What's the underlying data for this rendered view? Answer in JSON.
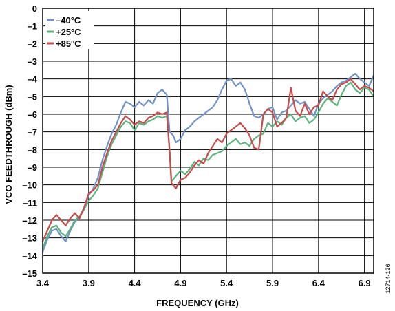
{
  "chart_data": {
    "type": "line",
    "xlabel": "FREQUENCY (GHz)",
    "ylabel": "VCO FEEDTHROUGH (dBm)",
    "xlim": [
      3.4,
      7.0
    ],
    "ylim": [
      -15,
      0
    ],
    "xticks": [
      "3.4",
      "3.9",
      "4.4",
      "4.9",
      "5.4",
      "5.9",
      "6.4",
      "6.9"
    ],
    "xtick_values": [
      3.4,
      3.9,
      4.4,
      4.9,
      5.4,
      5.9,
      6.4,
      6.9
    ],
    "yticks": [
      "0",
      "–1",
      "–2",
      "–3",
      "–4",
      "–5",
      "–6",
      "–7",
      "–8",
      "–9",
      "–10",
      "–11",
      "–12",
      "–13",
      "–14",
      "–15"
    ],
    "ytick_values": [
      0,
      -1,
      -2,
      -3,
      -4,
      -5,
      -6,
      -7,
      -8,
      -9,
      -10,
      -11,
      -12,
      -13,
      -14,
      -15
    ],
    "grid": true,
    "legend_position": "top-left",
    "figure_id": "12714-126",
    "series": [
      {
        "name": "–40°C",
        "color": "#6f93c9",
        "x": [
          3.4,
          3.45,
          3.5,
          3.55,
          3.6,
          3.65,
          3.7,
          3.75,
          3.8,
          3.85,
          3.9,
          3.95,
          4.0,
          4.05,
          4.1,
          4.15,
          4.2,
          4.25,
          4.3,
          4.35,
          4.4,
          4.45,
          4.5,
          4.55,
          4.6,
          4.65,
          4.7,
          4.75,
          4.78,
          4.82,
          4.85,
          4.9,
          4.95,
          5.0,
          5.05,
          5.1,
          5.15,
          5.2,
          5.25,
          5.3,
          5.35,
          5.4,
          5.45,
          5.5,
          5.55,
          5.6,
          5.65,
          5.7,
          5.75,
          5.8,
          5.85,
          5.9,
          5.95,
          6.0,
          6.05,
          6.1,
          6.15,
          6.2,
          6.25,
          6.3,
          6.35,
          6.4,
          6.45,
          6.5,
          6.55,
          6.6,
          6.65,
          6.7,
          6.75,
          6.8,
          6.85,
          6.9,
          6.95,
          7.0
        ],
        "values": [
          -13.8,
          -13.1,
          -12.6,
          -12.5,
          -12.9,
          -13.2,
          -12.6,
          -12.1,
          -11.8,
          -11.3,
          -10.6,
          -10.2,
          -9.6,
          -8.6,
          -7.8,
          -7.1,
          -6.6,
          -5.9,
          -5.3,
          -5.4,
          -5.6,
          -5.3,
          -5.5,
          -5.2,
          -5.4,
          -4.8,
          -4.6,
          -4.9,
          -7.0,
          -7.2,
          -7.6,
          -7.4,
          -6.9,
          -6.7,
          -6.4,
          -6.2,
          -6.0,
          -5.8,
          -5.6,
          -5.2,
          -4.6,
          -4.1,
          -4.0,
          -4.4,
          -4.2,
          -4.6,
          -5.4,
          -6.1,
          -6.2,
          -6.0,
          -5.7,
          -5.6,
          -6.3,
          -5.9,
          -5.8,
          -5.5,
          -5.2,
          -5.4,
          -5.3,
          -5.7,
          -6.1,
          -5.4,
          -5.1,
          -4.9,
          -4.7,
          -4.4,
          -4.2,
          -4.1,
          -3.9,
          -3.7,
          -4.0,
          -4.2,
          -4.4,
          -3.8
        ]
      },
      {
        "name": "+25°C",
        "color": "#5bb37c",
        "x": [
          3.4,
          3.45,
          3.5,
          3.55,
          3.6,
          3.65,
          3.7,
          3.75,
          3.8,
          3.85,
          3.9,
          3.95,
          4.0,
          4.05,
          4.1,
          4.15,
          4.2,
          4.25,
          4.3,
          4.35,
          4.4,
          4.45,
          4.5,
          4.55,
          4.6,
          4.65,
          4.7,
          4.75,
          4.78,
          4.8,
          4.85,
          4.9,
          4.95,
          5.0,
          5.05,
          5.1,
          5.15,
          5.2,
          5.25,
          5.3,
          5.35,
          5.4,
          5.45,
          5.5,
          5.55,
          5.6,
          5.65,
          5.7,
          5.75,
          5.8,
          5.85,
          5.9,
          5.95,
          6.0,
          6.05,
          6.1,
          6.15,
          6.2,
          6.25,
          6.3,
          6.35,
          6.4,
          6.45,
          6.5,
          6.55,
          6.6,
          6.65,
          6.7,
          6.75,
          6.8,
          6.85,
          6.9,
          6.95,
          7.0
        ],
        "values": [
          -13.6,
          -12.9,
          -12.4,
          -12.3,
          -12.7,
          -12.9,
          -12.5,
          -12.0,
          -11.8,
          -11.4,
          -10.9,
          -10.6,
          -10.2,
          -9.3,
          -8.4,
          -7.7,
          -7.2,
          -6.7,
          -6.4,
          -6.5,
          -6.9,
          -6.5,
          -6.6,
          -6.4,
          -6.3,
          -6.1,
          -6.2,
          -6.1,
          -8.0,
          -9.8,
          -9.5,
          -9.2,
          -9.4,
          -9.1,
          -8.7,
          -8.9,
          -8.5,
          -8.6,
          -8.3,
          -8.2,
          -8.1,
          -7.8,
          -7.6,
          -7.4,
          -7.7,
          -7.6,
          -7.8,
          -7.4,
          -7.2,
          -7.1,
          -6.5,
          -6.7,
          -6.4,
          -6.6,
          -6.2,
          -6.0,
          -6.4,
          -6.2,
          -6.1,
          -6.5,
          -6.3,
          -5.9,
          -5.4,
          -5.1,
          -5.3,
          -5.5,
          -4.9,
          -4.4,
          -4.2,
          -4.6,
          -4.8,
          -4.5,
          -4.6,
          -5.0
        ]
      },
      {
        "name": "+85°C",
        "color": "#c94a4a",
        "x": [
          3.4,
          3.45,
          3.5,
          3.55,
          3.6,
          3.65,
          3.7,
          3.75,
          3.8,
          3.85,
          3.9,
          3.95,
          4.0,
          4.05,
          4.1,
          4.15,
          4.2,
          4.25,
          4.3,
          4.35,
          4.4,
          4.45,
          4.5,
          4.55,
          4.6,
          4.65,
          4.7,
          4.75,
          4.78,
          4.8,
          4.85,
          4.9,
          4.95,
          5.0,
          5.05,
          5.1,
          5.15,
          5.2,
          5.25,
          5.3,
          5.35,
          5.4,
          5.45,
          5.5,
          5.55,
          5.6,
          5.65,
          5.7,
          5.75,
          5.8,
          5.85,
          5.9,
          5.95,
          6.0,
          6.05,
          6.1,
          6.15,
          6.2,
          6.25,
          6.3,
          6.35,
          6.4,
          6.45,
          6.5,
          6.55,
          6.6,
          6.65,
          6.7,
          6.75,
          6.8,
          6.85,
          6.9,
          6.95,
          7.0
        ],
        "values": [
          -13.2,
          -12.6,
          -12.0,
          -11.7,
          -12.0,
          -12.3,
          -11.9,
          -11.6,
          -11.9,
          -11.3,
          -10.5,
          -10.3,
          -10.0,
          -9.0,
          -8.2,
          -7.5,
          -7.0,
          -6.5,
          -6.1,
          -6.3,
          -6.6,
          -6.4,
          -6.5,
          -6.2,
          -6.1,
          -5.9,
          -6.0,
          -5.9,
          -8.1,
          -9.9,
          -10.2,
          -9.7,
          -9.6,
          -9.3,
          -8.9,
          -8.6,
          -8.8,
          -8.2,
          -7.8,
          -7.4,
          -7.6,
          -7.1,
          -6.9,
          -6.7,
          -6.5,
          -6.8,
          -7.2,
          -7.9,
          -8.0,
          -6.0,
          -5.7,
          -5.9,
          -6.7,
          -6.5,
          -6.2,
          -4.5,
          -5.8,
          -6.1,
          -5.4,
          -6.0,
          -5.6,
          -5.5,
          -4.7,
          -5.0,
          -5.2,
          -4.6,
          -4.3,
          -4.2,
          -4.0,
          -4.3,
          -4.6,
          -4.4,
          -4.5,
          -4.7
        ]
      }
    ]
  }
}
